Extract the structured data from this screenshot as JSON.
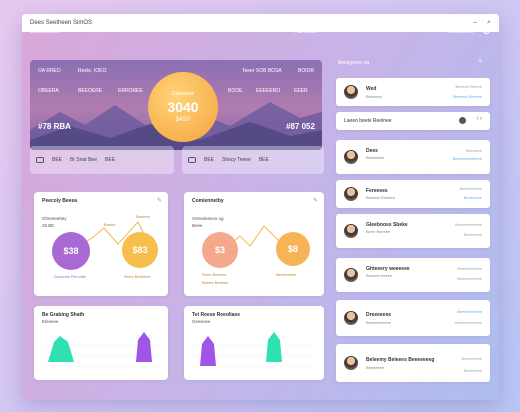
{
  "window": {
    "title": "Dees Seetheen SimOS",
    "min": "–",
    "search": "⌕"
  },
  "topbar": {
    "left": "Bevotelreeun",
    "mid": "Fad ssnes",
    "right": "Beesheeee"
  },
  "hero": {
    "left_top_a": "OA RREO",
    "left_top_b": "Reele, IOEO",
    "left_mid_a": "OBEERA",
    "left_mid_b": "BEEOERE",
    "left_mid_c": "ERROREE",
    "right_top_a": "Teeer SOB BOSA",
    "right_top_b": "BOIOR",
    "right_mid_a": "BOOE",
    "right_mid_b": "EEEEERO",
    "right_mid_c": "EEER",
    "circle_label": "Gooreeee",
    "circle_value": "3040",
    "circle_sub": "$4S0",
    "bottom_left": "#78 RBA",
    "bottom_right": "#87 052"
  },
  "strip_left": {
    "a": "BEE",
    "b": "Br Snat Bee",
    "c": "BEE"
  },
  "strip_right": {
    "a": "BEE",
    "b": "Shecy Teeee",
    "c": "BEE"
  },
  "card1": {
    "title": "Peecoiy Beeea",
    "sub1": "Gheeteettey",
    "sub2": "25 BE",
    "bubble1": "$38",
    "bubble2": "$83",
    "lab_top1": "Beeee",
    "lab_top2": "Beeeee",
    "lab_b1": "Seeooee Reoottie",
    "lab_b2": "Reee Beeeeee"
  },
  "card2": {
    "title": "Comiennetby",
    "sub1": "Oetseleeeos og",
    "sub2": "Beee",
    "bubble1": "$3",
    "bubble2": "$8",
    "lab_b1": "Reee Beeeee",
    "lab_b2": "Beeeeeeee",
    "lab_b3": "Beeee Beeeee"
  },
  "card3": {
    "title": "Be Grabing Shath",
    "sub": "Eleeeee"
  },
  "card4": {
    "title": "Tet Reese Reeoliase",
    "sub": "Geeeoee"
  },
  "right": {
    "heading": "Beesgoree ea",
    "add": "+",
    "search_label": "Laeeo beele Reelnee",
    "items": [
      {
        "name": "Wed",
        "sub": "Beeeees",
        "meta": "Beeeee Beeee",
        "meta2": "Beeeee Beeees"
      },
      {
        "name": "Dees",
        "sub": "Beebeeee",
        "meta": "Beeoeee",
        "meta2": "Beeeeeeeebeee"
      },
      {
        "name": "Fereeees",
        "sub": "Beeeee Reeeee",
        "meta": "Beeeeeeees",
        "meta2": "Beeeeeee"
      },
      {
        "name": "Gleebooss Sbeke",
        "sub": "Beee Beeeee",
        "meta": "Beeeeeeeeees",
        "meta2": "Beeeeeee"
      },
      {
        "name": "Ghteeery weeeeee",
        "sub": "Beeoee eeeee",
        "meta": "Beeeeeeeeee",
        "meta2": "Beeeeeeeeee"
      },
      {
        "name": "Dreeeeeee",
        "sub": "Beeeeeeeeee",
        "meta": "Beeeeeeeeee",
        "meta2": "Beeeeeeeeees"
      },
      {
        "name": "Beleemy Beleees Beeeeeeeg",
        "sub": "Beeeeeee",
        "meta": "Beeeeeeee",
        "meta2": "Beeeeeee"
      }
    ]
  }
}
